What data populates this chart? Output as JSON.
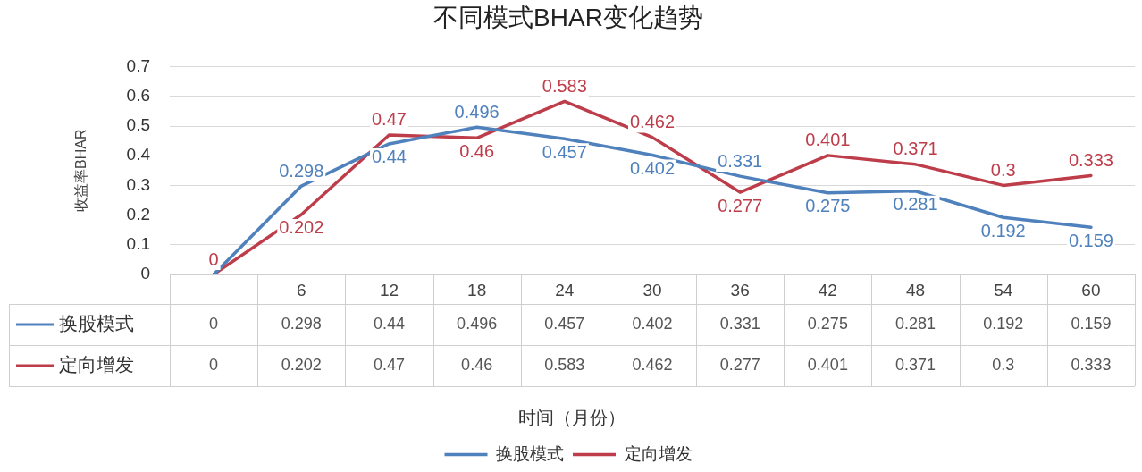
{
  "chart_data": {
    "type": "line",
    "title": "不同模式BHAR变化趋势",
    "ylabel": "收益率BHAR",
    "categories": [
      null,
      "6",
      "12",
      "18",
      "24",
      "30",
      "36",
      "42",
      "48",
      "54",
      "60"
    ],
    "series": [
      {
        "name": "换股模式",
        "color": "#4f81bd",
        "values": [
          0,
          0.298,
          0.44,
          0.496,
          0.457,
          0.402,
          0.331,
          0.275,
          0.281,
          0.192,
          0.159
        ]
      },
      {
        "name": "定向增发",
        "color": "#be3d4a",
        "values": [
          0,
          0.202,
          0.47,
          0.46,
          0.583,
          0.462,
          0.277,
          0.401,
          0.371,
          0.3,
          0.333
        ]
      }
    ],
    "ylim": [
      0,
      0.7
    ],
    "yticks": [
      0,
      0.1,
      0.2,
      0.3,
      0.4,
      0.5,
      0.6,
      0.7
    ],
    "grid": "y",
    "legend": "bottom",
    "data_labels": true,
    "marker": "none",
    "line_style": "solid",
    "annotations": [
      {
        "text": "0",
        "y": 0
      },
      {
        "text": "0.298",
        "x": "6",
        "y": 0.298
      },
      {
        "text": "0.202",
        "x": "6",
        "y": 0.202
      },
      {
        "text": "0.44",
        "x": "12",
        "y": 0.44
      },
      {
        "text": "0.47",
        "x": "12",
        "y": 0.47
      },
      {
        "text": "0.496",
        "x": "18",
        "y": 0.496
      },
      {
        "text": "0.46",
        "x": "18",
        "y": 0.46
      },
      {
        "text": "0.457",
        "x": "24",
        "y": 0.457
      },
      {
        "text": "0.583",
        "x": "24",
        "y": 0.583
      },
      {
        "text": "0.402",
        "x": "30",
        "y": 0.402
      },
      {
        "text": "0.462",
        "x": "30",
        "y": 0.462
      },
      {
        "text": "0.331",
        "x": "36",
        "y": 0.331
      },
      {
        "text": "0.277",
        "x": "36",
        "y": 0.277
      },
      {
        "text": "0.275",
        "x": "42",
        "y": 0.275
      },
      {
        "text": "0.401",
        "x": "42",
        "y": 0.401
      },
      {
        "text": "0.281",
        "x": "48",
        "y": 0.281
      },
      {
        "text": "0.371",
        "x": "48",
        "y": 0.371
      },
      {
        "text": "0.192",
        "x": "54",
        "y": 0.192
      },
      {
        "text": "0.3",
        "x": "54",
        "y": 0.3
      },
      {
        "text": "0.159",
        "x": "60",
        "y": 0.159
      },
      {
        "text": "0.333",
        "x": "60",
        "y": 0.333
      },
      "时间（月份）"
    ]
  }
}
